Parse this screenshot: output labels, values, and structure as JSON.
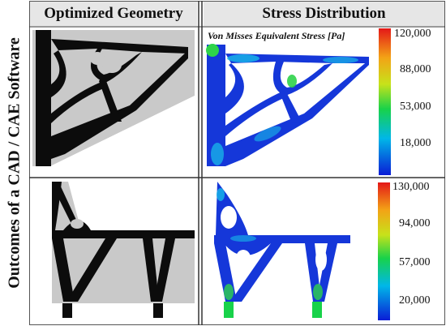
{
  "headers": {
    "left": "Optimized Geometry",
    "right": "Stress Distribution"
  },
  "side_label": "Outcomes of a CAD / CAE Software",
  "top_right": {
    "legend_title": "Von Misses Equivalent Stress [Pa]",
    "ticks": [
      "120,000",
      "88,000",
      "53,000",
      "18,000"
    ]
  },
  "bottom_right": {
    "ticks": [
      "130,000",
      "94,000",
      "57,000",
      "20,000"
    ]
  },
  "colors": {
    "header_bg": "#e6e6e6",
    "panel_bg": "#c9c9c9",
    "material": "#0c0c0c",
    "stress_low": "#1537d9",
    "stress_high": "#e02020"
  }
}
